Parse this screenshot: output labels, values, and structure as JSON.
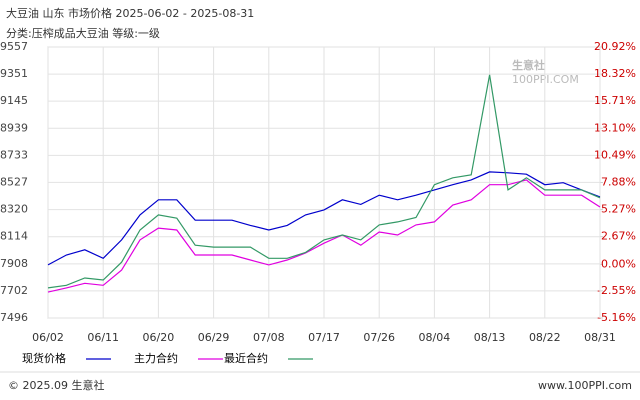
{
  "chart_data": {
    "type": "line",
    "title": "大豆油 山东 市场价格 2025-06-02 - 2025-08-31",
    "subtitle": "分类:压榨成品大豆油 等级:一级",
    "categories": [
      "06/02",
      null,
      null,
      "06/11",
      null,
      null,
      "06/20",
      null,
      null,
      "06/29",
      null,
      null,
      "07/08",
      null,
      null,
      "07/17",
      null,
      null,
      "07/26",
      null,
      null,
      "08/04",
      null,
      null,
      "08/13",
      null,
      null,
      "08/22",
      null,
      null,
      "08/31"
    ],
    "series": [
      {
        "name": "现货价格",
        "color": "#0000cc",
        "values": [
          7900,
          7975,
          8015,
          7950,
          8090,
          8280,
          8395,
          8395,
          8240,
          8240,
          8240,
          8200,
          8165,
          8200,
          8280,
          8318,
          8395,
          8360,
          8430,
          8395,
          8430,
          8470,
          8510,
          8546,
          8607,
          8600,
          8590,
          8510,
          8525,
          8470,
          8417
        ]
      },
      {
        "name": "主力合约",
        "color": "#e000e0",
        "values": [
          7693,
          7725,
          7760,
          7745,
          7860,
          8090,
          8180,
          8165,
          7975,
          7975,
          7975,
          7937,
          7900,
          7937,
          7990,
          8065,
          8127,
          8050,
          8150,
          8127,
          8204,
          8227,
          8355,
          8395,
          8510,
          8510,
          8546,
          8430,
          8430,
          8430,
          8340
        ]
      },
      {
        "name": "最近合约",
        "color": "#339966",
        "values": [
          7725,
          7745,
          7800,
          7785,
          7920,
          8165,
          8280,
          8255,
          8050,
          8035,
          8035,
          8035,
          7950,
          7950,
          7995,
          8090,
          8127,
          8090,
          8204,
          8227,
          8260,
          8510,
          8562,
          8585,
          9345,
          8470,
          8562,
          8470,
          8470,
          8470,
          8410
        ]
      }
    ],
    "ylim": [
      7496,
      9557
    ],
    "yticks": [
      7496,
      7702,
      7908,
      8114,
      8320,
      8527,
      8733,
      8939,
      9145,
      9351,
      9557
    ],
    "y2lim": [
      -5.16,
      20.92
    ],
    "y2ticks": [
      {
        "value": -5.16,
        "label": "-5.16%"
      },
      {
        "value": -2.55,
        "label": "-2.55%"
      },
      {
        "value": 0,
        "label": "0.00%"
      },
      {
        "value": 2.67,
        "label": "2.67%"
      },
      {
        "value": 5.27,
        "label": "5.27%"
      },
      {
        "value": 7.88,
        "label": "7.88%"
      },
      {
        "value": 10.49,
        "label": "10.49%"
      },
      {
        "value": 13.1,
        "label": "13.10%"
      },
      {
        "value": 15.71,
        "label": "15.71%"
      },
      {
        "value": 18.32,
        "label": "18.32%"
      },
      {
        "value": 20.92,
        "label": "20.92%"
      }
    ],
    "grid": true,
    "watermark": [
      "生意社",
      "100PPI.COM"
    ],
    "footer": [
      "© 2025.09 生意社",
      "www.100PPI.com"
    ]
  }
}
